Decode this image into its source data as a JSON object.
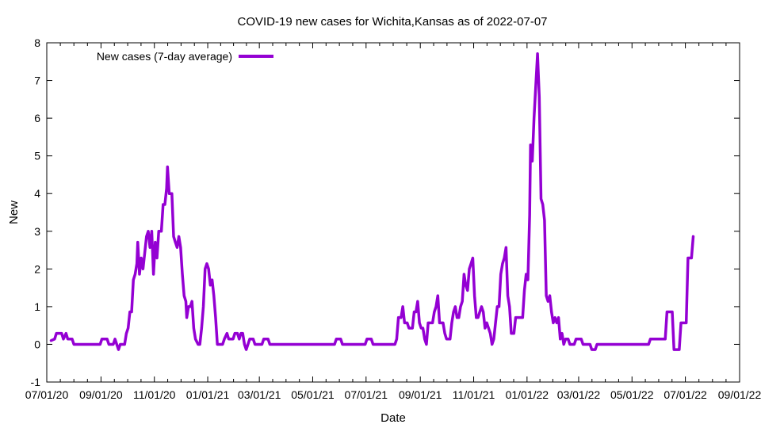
{
  "chart_data": {
    "type": "line",
    "title": "COVID-19 new cases for Wichita,Kansas as of 2022-07-07",
    "xlabel": "Date",
    "ylabel": "New",
    "xlim": [
      "2020-07-01",
      "2022-09-01"
    ],
    "ylim": [
      -1,
      8
    ],
    "x_ticks": [
      "2020-07-01",
      "2020-09-01",
      "2020-11-01",
      "2021-01-01",
      "2021-03-01",
      "2021-05-01",
      "2021-07-01",
      "2021-09-01",
      "2021-11-01",
      "2022-01-01",
      "2022-03-01",
      "2022-05-01",
      "2022-07-01",
      "2022-09-01"
    ],
    "x_tick_labels": [
      "07/01/20",
      "09/01/20",
      "11/01/20",
      "01/01/21",
      "03/01/21",
      "05/01/21",
      "07/01/21",
      "09/01/21",
      "11/01/21",
      "01/01/22",
      "03/01/22",
      "05/01/22",
      "07/01/22",
      "09/01/22"
    ],
    "y_ticks": [
      -1,
      0,
      1,
      2,
      3,
      4,
      5,
      6,
      7,
      8
    ],
    "grid": false,
    "legend_position": "top-left",
    "series": [
      {
        "name": "New cases (7-day average)",
        "color": "#9400d3",
        "points": [
          [
            "2020-07-06",
            0.1
          ],
          [
            "2020-07-10",
            0.14
          ],
          [
            "2020-07-12",
            0.29
          ],
          [
            "2020-07-18",
            0.29
          ],
          [
            "2020-07-20",
            0.14
          ],
          [
            "2020-07-23",
            0.29
          ],
          [
            "2020-07-25",
            0.14
          ],
          [
            "2020-07-30",
            0.14
          ],
          [
            "2020-08-01",
            0.0
          ],
          [
            "2020-08-31",
            0.0
          ],
          [
            "2020-09-02",
            0.14
          ],
          [
            "2020-09-08",
            0.14
          ],
          [
            "2020-09-10",
            0.0
          ],
          [
            "2020-09-15",
            0.0
          ],
          [
            "2020-09-17",
            0.14
          ],
          [
            "2020-09-19",
            0.0
          ],
          [
            "2020-09-21",
            -0.14
          ],
          [
            "2020-09-23",
            0.0
          ],
          [
            "2020-09-28",
            0.0
          ],
          [
            "2020-09-30",
            0.29
          ],
          [
            "2020-10-02",
            0.43
          ],
          [
            "2020-10-04",
            0.86
          ],
          [
            "2020-10-06",
            0.86
          ],
          [
            "2020-10-08",
            1.71
          ],
          [
            "2020-10-10",
            1.86
          ],
          [
            "2020-10-12",
            2.14
          ],
          [
            "2020-10-13",
            2.71
          ],
          [
            "2020-10-15",
            1.86
          ],
          [
            "2020-10-17",
            2.29
          ],
          [
            "2020-10-19",
            2.0
          ],
          [
            "2020-10-21",
            2.43
          ],
          [
            "2020-10-23",
            2.86
          ],
          [
            "2020-10-25",
            3.0
          ],
          [
            "2020-10-27",
            2.57
          ],
          [
            "2020-10-29",
            3.0
          ],
          [
            "2020-10-31",
            1.86
          ],
          [
            "2020-11-02",
            2.71
          ],
          [
            "2020-11-04",
            2.29
          ],
          [
            "2020-11-06",
            3.0
          ],
          [
            "2020-11-09",
            3.0
          ],
          [
            "2020-11-11",
            3.71
          ],
          [
            "2020-11-13",
            3.71
          ],
          [
            "2020-11-15",
            4.14
          ],
          [
            "2020-11-16",
            4.71
          ],
          [
            "2020-11-18",
            4.0
          ],
          [
            "2020-11-21",
            4.0
          ],
          [
            "2020-11-23",
            2.86
          ],
          [
            "2020-11-25",
            2.71
          ],
          [
            "2020-11-27",
            2.57
          ],
          [
            "2020-11-29",
            2.86
          ],
          [
            "2020-12-01",
            2.57
          ],
          [
            "2020-12-03",
            1.86
          ],
          [
            "2020-12-05",
            1.29
          ],
          [
            "2020-12-07",
            1.14
          ],
          [
            "2020-12-08",
            0.71
          ],
          [
            "2020-12-10",
            1.0
          ],
          [
            "2020-12-12",
            1.0
          ],
          [
            "2020-12-14",
            1.14
          ],
          [
            "2020-12-16",
            0.43
          ],
          [
            "2020-12-18",
            0.14
          ],
          [
            "2020-12-21",
            0.0
          ],
          [
            "2020-12-23",
            0.0
          ],
          [
            "2020-12-25",
            0.43
          ],
          [
            "2020-12-27",
            1.0
          ],
          [
            "2020-12-29",
            2.0
          ],
          [
            "2020-12-31",
            2.14
          ],
          [
            "2021-01-02",
            2.0
          ],
          [
            "2021-01-04",
            1.57
          ],
          [
            "2021-01-06",
            1.71
          ],
          [
            "2021-01-08",
            1.29
          ],
          [
            "2021-01-10",
            0.71
          ],
          [
            "2021-01-12",
            0.0
          ],
          [
            "2021-01-18",
            0.0
          ],
          [
            "2021-01-20",
            0.14
          ],
          [
            "2021-01-23",
            0.29
          ],
          [
            "2021-01-25",
            0.14
          ],
          [
            "2021-01-30",
            0.14
          ],
          [
            "2021-02-01",
            0.29
          ],
          [
            "2021-02-04",
            0.29
          ],
          [
            "2021-02-06",
            0.14
          ],
          [
            "2021-02-08",
            0.29
          ],
          [
            "2021-02-10",
            0.29
          ],
          [
            "2021-02-12",
            0.0
          ],
          [
            "2021-02-14",
            -0.14
          ],
          [
            "2021-02-16",
            0.0
          ],
          [
            "2021-02-18",
            0.14
          ],
          [
            "2021-02-22",
            0.14
          ],
          [
            "2021-02-24",
            0.0
          ],
          [
            "2021-03-04",
            0.0
          ],
          [
            "2021-03-06",
            0.14
          ],
          [
            "2021-03-11",
            0.14
          ],
          [
            "2021-03-13",
            0.0
          ],
          [
            "2021-05-26",
            0.0
          ],
          [
            "2021-05-28",
            0.14
          ],
          [
            "2021-06-02",
            0.14
          ],
          [
            "2021-06-04",
            0.0
          ],
          [
            "2021-06-30",
            0.0
          ],
          [
            "2021-07-02",
            0.14
          ],
          [
            "2021-07-07",
            0.14
          ],
          [
            "2021-07-09",
            0.0
          ],
          [
            "2021-08-03",
            0.0
          ],
          [
            "2021-08-05",
            0.14
          ],
          [
            "2021-08-07",
            0.71
          ],
          [
            "2021-08-10",
            0.71
          ],
          [
            "2021-08-12",
            1.0
          ],
          [
            "2021-08-14",
            0.57
          ],
          [
            "2021-08-17",
            0.57
          ],
          [
            "2021-08-19",
            0.43
          ],
          [
            "2021-08-23",
            0.43
          ],
          [
            "2021-08-25",
            0.86
          ],
          [
            "2021-08-27",
            0.86
          ],
          [
            "2021-08-29",
            1.14
          ],
          [
            "2021-08-31",
            0.57
          ],
          [
            "2021-09-02",
            0.43
          ],
          [
            "2021-09-04",
            0.43
          ],
          [
            "2021-09-06",
            0.14
          ],
          [
            "2021-09-08",
            0.0
          ],
          [
            "2021-09-10",
            0.57
          ],
          [
            "2021-09-15",
            0.57
          ],
          [
            "2021-09-17",
            0.86
          ],
          [
            "2021-09-19",
            1.0
          ],
          [
            "2021-09-21",
            1.29
          ],
          [
            "2021-09-23",
            0.57
          ],
          [
            "2021-09-27",
            0.57
          ],
          [
            "2021-09-29",
            0.29
          ],
          [
            "2021-10-01",
            0.14
          ],
          [
            "2021-10-05",
            0.14
          ],
          [
            "2021-10-07",
            0.57
          ],
          [
            "2021-10-09",
            0.86
          ],
          [
            "2021-10-11",
            1.0
          ],
          [
            "2021-10-13",
            0.71
          ],
          [
            "2021-10-15",
            0.71
          ],
          [
            "2021-10-17",
            1.0
          ],
          [
            "2021-10-19",
            1.14
          ],
          [
            "2021-10-21",
            1.86
          ],
          [
            "2021-10-23",
            1.57
          ],
          [
            "2021-10-25",
            1.43
          ],
          [
            "2021-10-27",
            2.0
          ],
          [
            "2021-10-29",
            2.14
          ],
          [
            "2021-10-31",
            2.29
          ],
          [
            "2021-11-02",
            1.29
          ],
          [
            "2021-11-04",
            0.71
          ],
          [
            "2021-11-06",
            0.71
          ],
          [
            "2021-11-08",
            0.86
          ],
          [
            "2021-11-10",
            1.0
          ],
          [
            "2021-11-12",
            0.86
          ],
          [
            "2021-11-14",
            0.43
          ],
          [
            "2021-11-16",
            0.57
          ],
          [
            "2021-11-18",
            0.43
          ],
          [
            "2021-11-20",
            0.29
          ],
          [
            "2021-11-22",
            0.0
          ],
          [
            "2021-11-24",
            0.14
          ],
          [
            "2021-11-26",
            0.57
          ],
          [
            "2021-11-28",
            1.0
          ],
          [
            "2021-11-30",
            1.0
          ],
          [
            "2021-12-02",
            1.86
          ],
          [
            "2021-12-04",
            2.14
          ],
          [
            "2021-12-06",
            2.29
          ],
          [
            "2021-12-08",
            2.57
          ],
          [
            "2021-12-10",
            1.29
          ],
          [
            "2021-12-12",
            1.0
          ],
          [
            "2021-12-14",
            0.29
          ],
          [
            "2021-12-17",
            0.29
          ],
          [
            "2021-12-19",
            0.71
          ],
          [
            "2021-12-27",
            0.71
          ],
          [
            "2021-12-29",
            1.43
          ],
          [
            "2021-12-31",
            1.86
          ],
          [
            "2022-01-02",
            1.71
          ],
          [
            "2022-01-04",
            3.43
          ],
          [
            "2022-01-05",
            5.29
          ],
          [
            "2022-01-07",
            4.86
          ],
          [
            "2022-01-09",
            6.0
          ],
          [
            "2022-01-11",
            6.86
          ],
          [
            "2022-01-13",
            7.71
          ],
          [
            "2022-01-15",
            6.57
          ],
          [
            "2022-01-17",
            3.86
          ],
          [
            "2022-01-19",
            3.71
          ],
          [
            "2022-01-21",
            3.29
          ],
          [
            "2022-01-23",
            1.29
          ],
          [
            "2022-01-25",
            1.14
          ],
          [
            "2022-01-27",
            1.29
          ],
          [
            "2022-01-29",
            0.86
          ],
          [
            "2022-01-31",
            0.57
          ],
          [
            "2022-02-02",
            0.71
          ],
          [
            "2022-02-04",
            0.57
          ],
          [
            "2022-02-06",
            0.71
          ],
          [
            "2022-02-08",
            0.14
          ],
          [
            "2022-02-10",
            0.29
          ],
          [
            "2022-02-12",
            0.0
          ],
          [
            "2022-02-14",
            0.14
          ],
          [
            "2022-02-17",
            0.14
          ],
          [
            "2022-02-19",
            0.0
          ],
          [
            "2022-02-24",
            0.0
          ],
          [
            "2022-02-26",
            0.14
          ],
          [
            "2022-03-04",
            0.14
          ],
          [
            "2022-03-06",
            0.0
          ],
          [
            "2022-03-14",
            0.0
          ],
          [
            "2022-03-16",
            -0.14
          ],
          [
            "2022-03-20",
            -0.14
          ],
          [
            "2022-03-22",
            0.0
          ],
          [
            "2022-05-20",
            0.0
          ],
          [
            "2022-05-22",
            0.14
          ],
          [
            "2022-06-08",
            0.14
          ],
          [
            "2022-06-10",
            0.86
          ],
          [
            "2022-06-16",
            0.86
          ],
          [
            "2022-06-18",
            -0.14
          ],
          [
            "2022-06-24",
            -0.14
          ],
          [
            "2022-06-26",
            0.57
          ],
          [
            "2022-07-02",
            0.57
          ],
          [
            "2022-07-04",
            2.29
          ],
          [
            "2022-07-08",
            2.29
          ],
          [
            "2022-07-10",
            2.86
          ]
        ]
      }
    ]
  }
}
